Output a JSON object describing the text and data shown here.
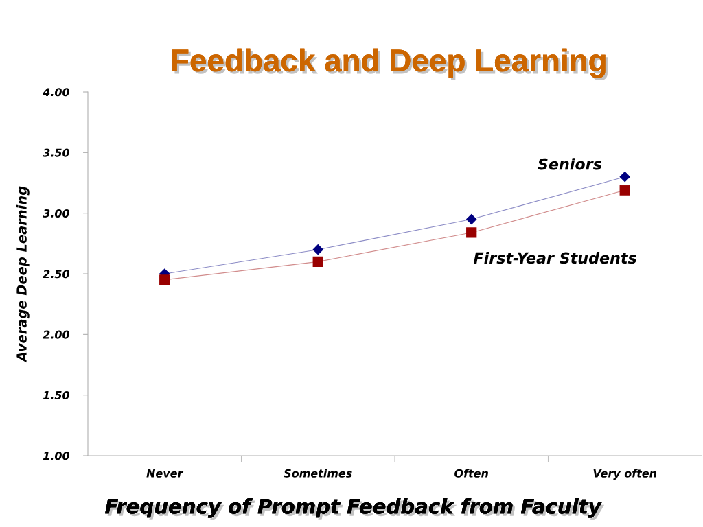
{
  "chart_data": {
    "type": "line",
    "title": "Feedback and Deep Learning",
    "xlabel": "Frequency of Prompt Feedback from Faculty",
    "ylabel": "Average Deep Learning",
    "categories": [
      "Never",
      "Sometimes",
      "Often",
      "Very often"
    ],
    "series": [
      {
        "name": "Seniors",
        "color": "#000080",
        "marker": "diamond",
        "values": [
          2.5,
          2.7,
          2.95,
          3.3
        ]
      },
      {
        "name": "First-Year Students",
        "color": "#990000",
        "marker": "square",
        "values": [
          2.45,
          2.6,
          2.84,
          3.19
        ]
      }
    ],
    "ylim": [
      1,
      4
    ],
    "yticks": [
      {
        "value": 1,
        "label": "1.00"
      },
      {
        "value": 1.5,
        "label": "1.50"
      },
      {
        "value": 2,
        "label": "2.00"
      },
      {
        "value": 2.5,
        "label": "2.50"
      },
      {
        "value": 3,
        "label": "3.00"
      },
      {
        "value": 3.5,
        "label": "3.50"
      },
      {
        "value": 4,
        "label": "4.00"
      }
    ],
    "grid": false,
    "line_style": "solid"
  }
}
